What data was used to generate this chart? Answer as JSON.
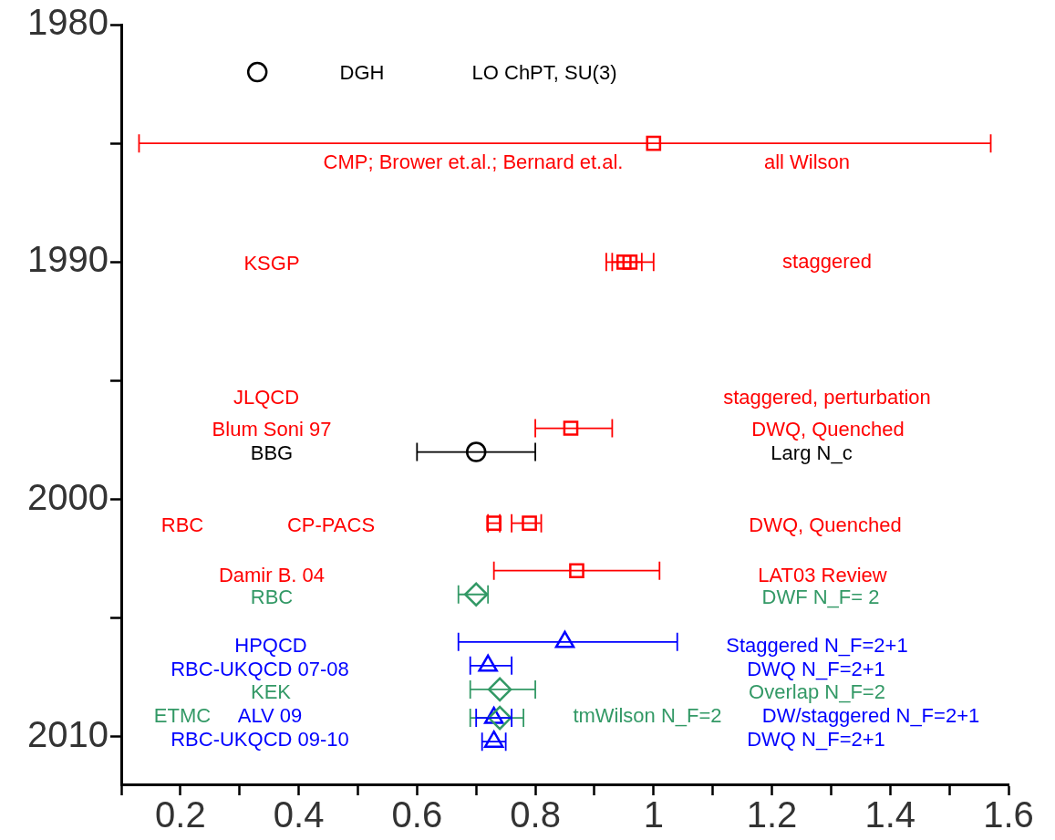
{
  "chart_data": {
    "type": "scatter",
    "xlim": [
      0.1,
      1.6
    ],
    "ylim": [
      2012,
      1980
    ],
    "xticks": [
      {
        "value": 0.1,
        "label": null
      },
      0.2,
      {
        "value": 0.3,
        "label": null
      },
      0.4,
      {
        "value": 0.5,
        "label": null
      },
      0.6,
      {
        "value": 0.7,
        "label": null
      },
      0.8,
      {
        "value": 0.9,
        "label": null
      },
      1,
      {
        "value": 1.1,
        "label": null
      },
      1.2,
      {
        "value": 1.3,
        "label": null
      },
      1.4,
      {
        "value": 1.5,
        "label": null
      },
      1.6
    ],
    "yticks": [
      1980,
      {
        "value": 1985,
        "label": null
      },
      1990,
      {
        "value": 1995,
        "label": null
      },
      2000,
      {
        "value": 2005,
        "label": null
      },
      2010
    ],
    "grid": false,
    "legend": false,
    "series": [
      {
        "color": "#000000",
        "marker": "circle",
        "x": [
          0.33,
          0.7
        ],
        "values": [
          1982,
          1998
        ],
        "xerrors": [
          null,
          [
            0.6,
            0.8
          ]
        ]
      },
      {
        "color": "#ff0000",
        "marker": "square",
        "x": [
          1.0,
          0.95,
          0.96,
          0.86,
          0.73,
          0.79,
          0.87
        ],
        "values": [
          1985,
          1990,
          1990,
          1997,
          2001,
          2001,
          2003
        ],
        "xerrors": [
          [
            0.13,
            1.57
          ],
          [
            0.92,
            0.98
          ],
          [
            0.93,
            1.0
          ],
          [
            0.8,
            0.93
          ],
          [
            0.72,
            0.74
          ],
          [
            0.76,
            0.81
          ],
          [
            0.73,
            1.01
          ]
        ]
      },
      {
        "color": "#339966",
        "marker": "diamond",
        "x": [
          0.7,
          0.74,
          0.74
        ],
        "values": [
          2004,
          2008,
          2009.2
        ],
        "xerrors": [
          [
            0.67,
            0.72
          ],
          [
            0.69,
            0.8
          ],
          [
            0.69,
            0.78
          ]
        ]
      },
      {
        "color": "#0000ff",
        "marker": "triangle",
        "x": [
          0.85,
          0.72,
          0.73,
          0.73
        ],
        "values": [
          2006,
          2007,
          2009.2,
          2010.2
        ],
        "xerrors": [
          [
            0.67,
            1.04
          ],
          [
            0.69,
            0.76
          ],
          [
            0.7,
            0.76
          ],
          [
            0.71,
            0.75
          ]
        ]
      }
    ],
    "annotations": [
      "DGH",
      "LO ChPT, SU(3)",
      "CMP; Brower et.al.; Bernard et.al.",
      "all Wilson",
      "KSGP",
      "staggered",
      "JLQCD",
      "staggered, perturbation",
      "Blum Soni 97",
      "DWQ, Quenched",
      "BBG",
      "Larg N_c",
      "RBC",
      "CP-PACS",
      "DWQ, Quenched",
      "Damir B. 04",
      "LAT03 Review",
      "RBC",
      "DWF N_F= 2",
      "HPQCD",
      "Staggered N_F=2+1",
      "RBC-UKQCD 07-08",
      "DWQ N_F=2+1",
      "KEK",
      "Overlap N_F=2",
      "ETMC",
      "ALV 09",
      "tmWilson N_F=2",
      "DW/staggered N_F=2+1",
      "RBC-UKQCD 09-10",
      "DWQ N_F=2+1"
    ]
  }
}
